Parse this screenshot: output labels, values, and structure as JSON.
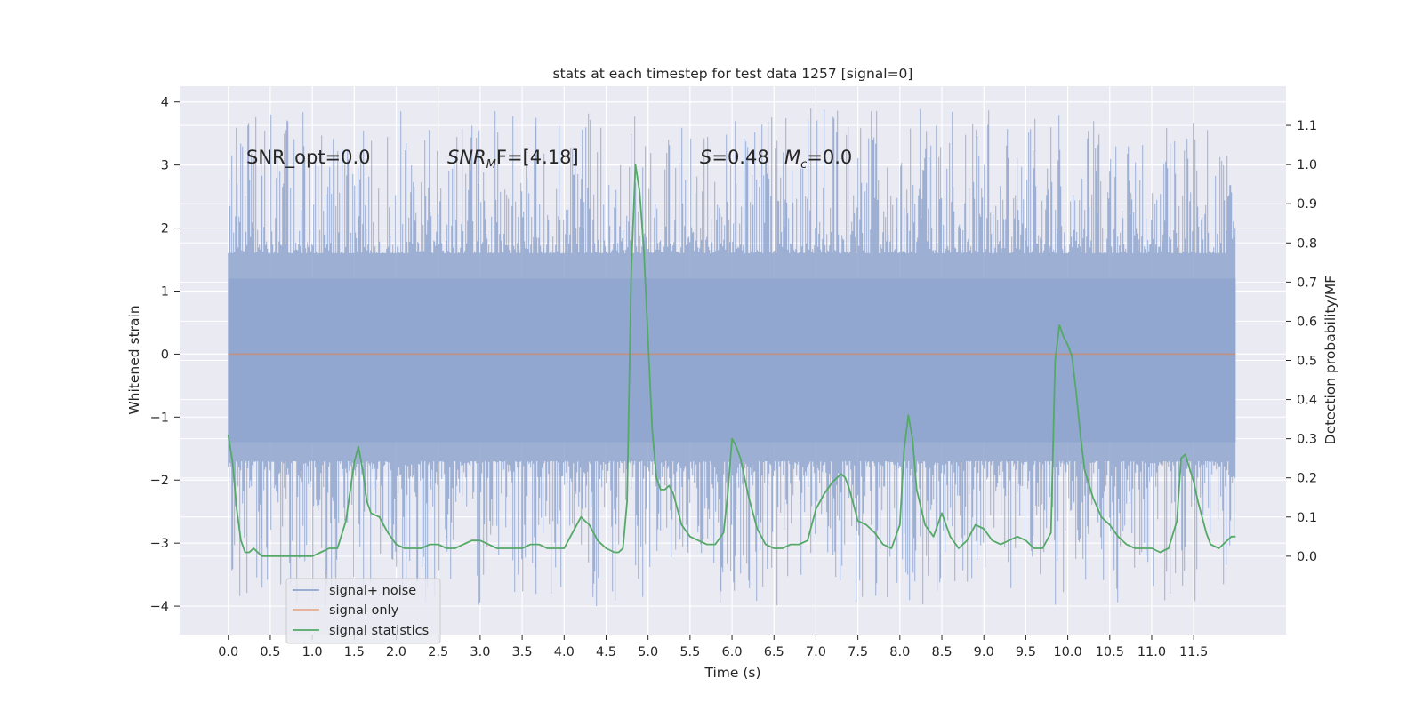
{
  "chart_data": {
    "type": "line",
    "title": "stats at each timestep for test data 1257 [signal=0]",
    "xlabel": "Time (s)",
    "ylabel": "Whitened strain",
    "ylabel_right": "Detection probability/MF",
    "xlim": [
      -0.58,
      12.6
    ],
    "ylim": [
      -4.45,
      4.25
    ],
    "ylim_right": [
      -0.2,
      1.2
    ],
    "x_ticks": [
      "0.0",
      "0.5",
      "1.0",
      "1.5",
      "2.0",
      "2.5",
      "3.0",
      "3.5",
      "4.0",
      "4.5",
      "5.0",
      "5.5",
      "6.0",
      "6.5",
      "7.0",
      "7.5",
      "8.0",
      "8.5",
      "9.0",
      "9.5",
      "10.0",
      "10.5",
      "11.0",
      "11.5"
    ],
    "y_ticks": [
      "4",
      "3",
      "2",
      "1",
      "0",
      "−1",
      "−2",
      "−3",
      "−4"
    ],
    "y_ticks_right": [
      "1.1",
      "1.0",
      "0.9",
      "0.8",
      "0.7",
      "0.6",
      "0.5",
      "0.4",
      "0.3",
      "0.2",
      "0.1",
      "0.0"
    ],
    "grid": true,
    "legend_position": "lower-left",
    "annotations": {
      "snr_opt": "SNR_opt=0.0",
      "snr_mf_base": "SNR",
      "snr_mf_sub": "M",
      "snr_mf_rest": "F=[4.18]",
      "s_label": "S",
      "s_value": "=0.48",
      "mc_label": "M",
      "mc_sub": "c",
      "mc_value": "=0.0"
    },
    "colors": {
      "background": "#eaeaf2",
      "grid": "#ffffff",
      "noise": "#8fa6cf",
      "signal_only": "#dd8452",
      "statistics": "#55a868",
      "text": "#262626"
    },
    "series": [
      {
        "name": "signal+ noise",
        "kind": "noise band",
        "x_range": [
          0.0,
          12.0
        ],
        "dense_band": [
          -1.4,
          1.2
        ],
        "peak_range": [
          -4.0,
          3.9
        ]
      },
      {
        "name": "signal only",
        "x_range": [
          0.0,
          12.0
        ],
        "y": [
          0.0,
          0.0
        ]
      },
      {
        "name": "signal statistics",
        "axis": "right",
        "x": [
          0.0,
          0.05,
          0.1,
          0.15,
          0.2,
          0.25,
          0.3,
          0.35,
          0.4,
          0.5,
          0.6,
          0.7,
          0.8,
          0.9,
          1.0,
          1.1,
          1.2,
          1.3,
          1.4,
          1.5,
          1.55,
          1.6,
          1.65,
          1.7,
          1.8,
          1.9,
          2.0,
          2.1,
          2.2,
          2.3,
          2.4,
          2.5,
          2.6,
          2.7,
          2.8,
          2.9,
          3.0,
          3.1,
          3.2,
          3.3,
          3.4,
          3.5,
          3.6,
          3.7,
          3.8,
          3.9,
          4.0,
          4.1,
          4.2,
          4.3,
          4.4,
          4.5,
          4.6,
          4.65,
          4.7,
          4.75,
          4.8,
          4.85,
          4.9,
          4.95,
          5.0,
          5.05,
          5.1,
          5.15,
          5.2,
          5.25,
          5.3,
          5.4,
          5.5,
          5.6,
          5.7,
          5.8,
          5.9,
          5.95,
          6.0,
          6.05,
          6.1,
          6.15,
          6.2,
          6.3,
          6.4,
          6.5,
          6.6,
          6.7,
          6.8,
          6.9,
          7.0,
          7.1,
          7.2,
          7.3,
          7.35,
          7.4,
          7.5,
          7.6,
          7.7,
          7.8,
          7.9,
          8.0,
          8.05,
          8.1,
          8.15,
          8.2,
          8.3,
          8.4,
          8.5,
          8.6,
          8.7,
          8.8,
          8.9,
          9.0,
          9.1,
          9.2,
          9.3,
          9.4,
          9.5,
          9.6,
          9.7,
          9.8,
          9.85,
          9.9,
          9.95,
          10.0,
          10.05,
          10.1,
          10.15,
          10.2,
          10.3,
          10.4,
          10.5,
          10.6,
          10.7,
          10.8,
          10.9,
          11.0,
          11.1,
          11.2,
          11.3,
          11.35,
          11.4,
          11.5,
          11.55,
          11.6,
          11.65,
          11.7,
          11.8,
          11.9,
          11.95,
          12.0
        ],
        "y": [
          0.31,
          0.24,
          0.12,
          0.04,
          0.01,
          0.01,
          0.02,
          0.01,
          0.0,
          0.0,
          0.0,
          0.0,
          0.0,
          0.0,
          0.0,
          0.01,
          0.02,
          0.02,
          0.09,
          0.24,
          0.28,
          0.22,
          0.14,
          0.11,
          0.1,
          0.06,
          0.03,
          0.02,
          0.02,
          0.02,
          0.03,
          0.03,
          0.02,
          0.02,
          0.03,
          0.04,
          0.04,
          0.03,
          0.02,
          0.02,
          0.02,
          0.02,
          0.03,
          0.03,
          0.02,
          0.02,
          0.02,
          0.06,
          0.1,
          0.08,
          0.04,
          0.02,
          0.01,
          0.01,
          0.02,
          0.14,
          0.73,
          1.0,
          0.93,
          0.78,
          0.55,
          0.32,
          0.2,
          0.17,
          0.17,
          0.18,
          0.16,
          0.08,
          0.05,
          0.04,
          0.03,
          0.03,
          0.06,
          0.16,
          0.3,
          0.28,
          0.25,
          0.2,
          0.15,
          0.07,
          0.03,
          0.02,
          0.02,
          0.03,
          0.03,
          0.04,
          0.12,
          0.16,
          0.19,
          0.21,
          0.2,
          0.17,
          0.09,
          0.08,
          0.06,
          0.03,
          0.02,
          0.08,
          0.27,
          0.36,
          0.3,
          0.17,
          0.08,
          0.05,
          0.11,
          0.05,
          0.02,
          0.04,
          0.08,
          0.07,
          0.04,
          0.03,
          0.04,
          0.05,
          0.04,
          0.02,
          0.02,
          0.06,
          0.5,
          0.59,
          0.56,
          0.54,
          0.51,
          0.42,
          0.31,
          0.22,
          0.15,
          0.1,
          0.08,
          0.05,
          0.03,
          0.02,
          0.02,
          0.02,
          0.01,
          0.02,
          0.09,
          0.25,
          0.26,
          0.19,
          0.14,
          0.1,
          0.06,
          0.03,
          0.02,
          0.04,
          0.05,
          0.05
        ]
      }
    ]
  }
}
